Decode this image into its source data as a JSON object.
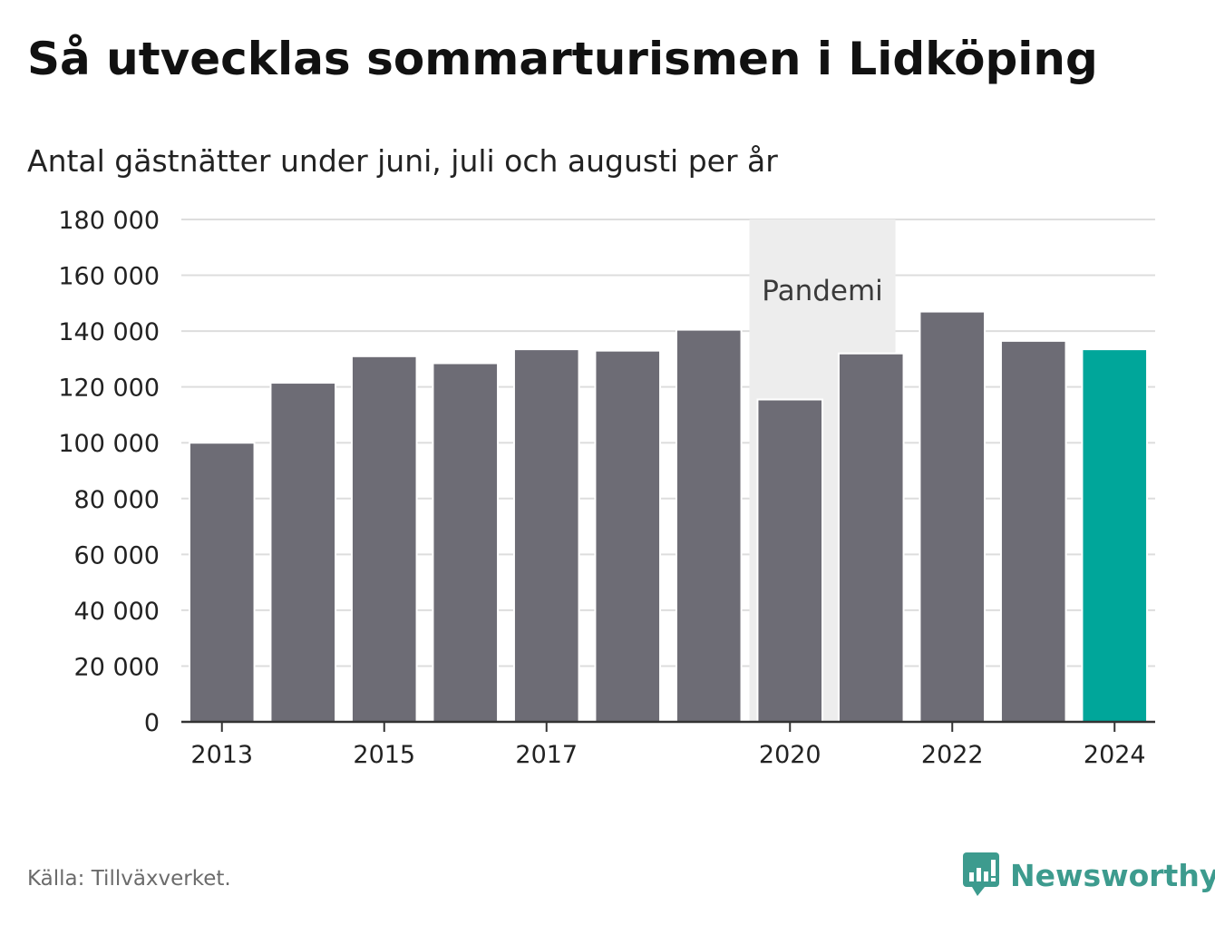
{
  "title": "Så utvecklas sommarturismen i Lidköping",
  "subtitle": "Antal gästnätter under juni, juli och augusti per år",
  "source": "Källa: Tillväxverket.",
  "brand": {
    "name": "Newsworthy",
    "icon": "newsworthy-logo-icon"
  },
  "colors": {
    "bar": "#6d6c75",
    "highlight": "#00a69a",
    "band": "#ededed",
    "grid": "#dddddd",
    "axis": "#333333",
    "brand": "#3d9b8e"
  },
  "chart_data": {
    "type": "bar",
    "categories": [
      "2013",
      "2014",
      "2015",
      "2016",
      "2017",
      "2018",
      "2019",
      "2020",
      "2021",
      "2022",
      "2023",
      "2024"
    ],
    "values": [
      100000,
      121500,
      131000,
      128500,
      133500,
      133000,
      140500,
      115500,
      132000,
      147000,
      136500,
      133500
    ],
    "highlight_index": 11,
    "xtick_labels": [
      "2013",
      "2015",
      "2017",
      "2020",
      "2022",
      "2024"
    ],
    "yticks": [
      0,
      20000,
      40000,
      60000,
      80000,
      100000,
      120000,
      140000,
      160000,
      180000
    ],
    "ytick_labels": [
      "0",
      "20 000",
      "40 000",
      "60 000",
      "80 000",
      "100 000",
      "120 000",
      "140 000",
      "160 000",
      "180 000"
    ],
    "ylim": [
      0,
      180000
    ],
    "grid": true,
    "annotation": {
      "label": "Pandemi",
      "from": "2020",
      "to": "2021"
    }
  }
}
